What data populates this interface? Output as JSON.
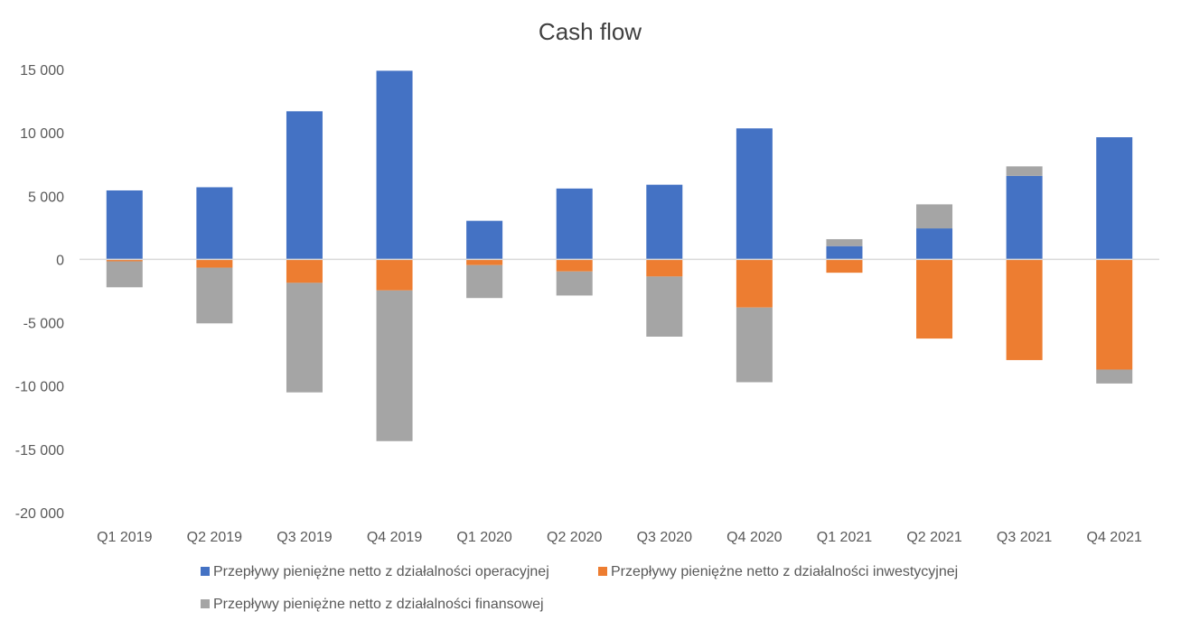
{
  "chart_data": {
    "type": "bar",
    "stacked": true,
    "title": "Cash flow",
    "xlabel": "",
    "ylabel": "",
    "categories": [
      "Q1 2019",
      "Q2 2019",
      "Q3 2019",
      "Q4 2019",
      "Q1 2020",
      "Q2 2020",
      "Q3 2020",
      "Q4 2020",
      "Q1 2021",
      "Q2 2021",
      "Q3 2021",
      "Q4 2021"
    ],
    "series": [
      {
        "name": "Przepływy pieniężne netto z działalności operacyjnej",
        "color": "#4472C4",
        "values": [
          5450,
          5700,
          11700,
          14900,
          3050,
          5600,
          5900,
          10350,
          1050,
          2450,
          6600,
          9650
        ]
      },
      {
        "name": "Przepływy pieniężne netto z działalności inwestycyjnej",
        "color": "#ED7D31",
        "values": [
          -150,
          -650,
          -1850,
          -2450,
          -450,
          -950,
          -1350,
          -3800,
          -1050,
          -6250,
          -7950,
          -8700
        ]
      },
      {
        "name": "Przepływy pieniężne netto z działalności finansowej",
        "color": "#A5A5A5",
        "values": [
          -2050,
          -4400,
          -8650,
          -11900,
          -2600,
          -1900,
          -4750,
          -5900,
          550,
          1900,
          750,
          -1100
        ]
      }
    ],
    "ylim": [
      -20000,
      15000
    ],
    "yticks": [
      15000,
      10000,
      5000,
      0,
      -5000,
      -10000,
      -15000,
      -20000
    ],
    "ytick_labels": [
      "15 000",
      "10 000",
      "5 000",
      "0",
      "-5 000",
      "-10 000",
      "-15 000",
      "-20 000"
    ],
    "grid": false,
    "legend_position": "bottom"
  }
}
